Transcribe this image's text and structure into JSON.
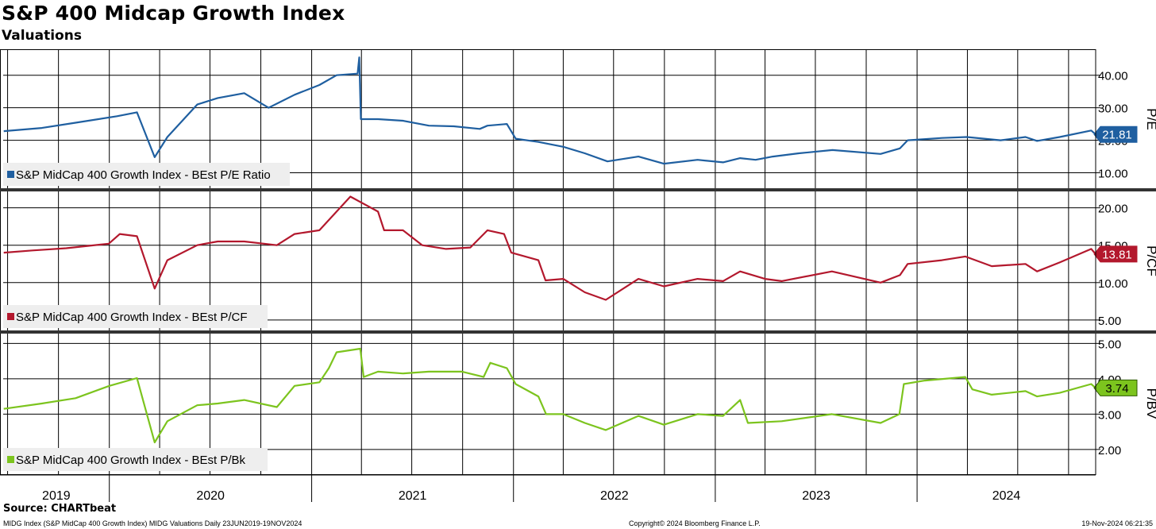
{
  "header": {
    "title": "S&P 400 Midcap Growth Index",
    "subtitle": "Valuations"
  },
  "footer": {
    "source": "Source: CHARTbeat",
    "description": "MIDG Index (S&P MidCap 400 Growth Index) MIDG Valuations  Daily 23JUN2019-19NOV2024",
    "copyright": "Copyright© 2024 Bloomberg Finance L.P.",
    "timestamp": "19-Nov-2024 06:21:35"
  },
  "chart_data": {
    "type": "line",
    "x_range": [
      "2019-06-23",
      "2024-11-19"
    ],
    "x_ticks": [
      "2019",
      "2020",
      "2021",
      "2022",
      "2023",
      "2024"
    ],
    "grid": true,
    "panels": [
      {
        "series_name": "S&P MidCap 400 Growth Index - BEst P/E Ratio",
        "axis_label": "P/E",
        "color": "#1f5fa0",
        "ylim": [
          5,
          48
        ],
        "y_ticks": [
          "10.00",
          "20.00",
          "30.00",
          "40.00"
        ],
        "last_value": "21.81",
        "points": [
          [
            "2019-06-24",
            22.8
          ],
          [
            "2019-09-01",
            23.8
          ],
          [
            "2019-11-01",
            25.4
          ],
          [
            "2020-01-15",
            27.4
          ],
          [
            "2020-02-20",
            28.6
          ],
          [
            "2020-03-23",
            14.8
          ],
          [
            "2020-04-15",
            21
          ],
          [
            "2020-06-08",
            31
          ],
          [
            "2020-07-15",
            33
          ],
          [
            "2020-09-01",
            34.5
          ],
          [
            "2020-10-15",
            30
          ],
          [
            "2020-12-01",
            34
          ],
          [
            "2021-01-15",
            37
          ],
          [
            "2021-02-15",
            40
          ],
          [
            "2021-03-25",
            40.5
          ],
          [
            "2021-03-28",
            45.5
          ],
          [
            "2021-03-31",
            26.5
          ],
          [
            "2021-05-01",
            26.5
          ],
          [
            "2021-06-15",
            26
          ],
          [
            "2021-08-01",
            24.5
          ],
          [
            "2021-09-15",
            24.3
          ],
          [
            "2021-11-01",
            23.5
          ],
          [
            "2021-11-15",
            24.5
          ],
          [
            "2021-12-20",
            25
          ],
          [
            "2022-01-05",
            20.5
          ],
          [
            "2022-02-15",
            19.5
          ],
          [
            "2022-04-01",
            18
          ],
          [
            "2022-05-10",
            16
          ],
          [
            "2022-06-20",
            13.5
          ],
          [
            "2022-08-15",
            15
          ],
          [
            "2022-09-30",
            12.8
          ],
          [
            "2022-11-30",
            14
          ],
          [
            "2023-01-15",
            13.2
          ],
          [
            "2023-02-15",
            14.5
          ],
          [
            "2023-03-15",
            14
          ],
          [
            "2023-04-15",
            15
          ],
          [
            "2023-06-01",
            16
          ],
          [
            "2023-08-01",
            17
          ],
          [
            "2023-10-27",
            15.8
          ],
          [
            "2023-12-01",
            17.5
          ],
          [
            "2023-12-15",
            20
          ],
          [
            "2024-02-15",
            20.7
          ],
          [
            "2024-03-31",
            21
          ],
          [
            "2024-05-31",
            20
          ],
          [
            "2024-07-15",
            21
          ],
          [
            "2024-08-05",
            19.8
          ],
          [
            "2024-09-15",
            21
          ],
          [
            "2024-11-11",
            23
          ],
          [
            "2024-11-19",
            21.81
          ]
        ]
      },
      {
        "series_name": "S&P MidCap 400 Growth Index - BEst P/CF",
        "axis_label": "P/CF",
        "color": "#b3182d",
        "ylim": [
          3.5,
          22.3
        ],
        "y_ticks": [
          "5.00",
          "10.00",
          "15.00",
          "20.00"
        ],
        "last_value": "13.81",
        "points": [
          [
            "2019-06-24",
            14
          ],
          [
            "2019-08-15",
            14.3
          ],
          [
            "2019-10-15",
            14.6
          ],
          [
            "2019-12-31",
            15.2
          ],
          [
            "2020-01-20",
            16.5
          ],
          [
            "2020-02-20",
            16.2
          ],
          [
            "2020-03-23",
            9.2
          ],
          [
            "2020-04-15",
            13
          ],
          [
            "2020-06-08",
            15
          ],
          [
            "2020-07-15",
            15.5
          ],
          [
            "2020-09-01",
            15.5
          ],
          [
            "2020-10-30",
            15
          ],
          [
            "2020-12-01",
            16.5
          ],
          [
            "2021-01-15",
            17
          ],
          [
            "2021-03-12",
            21.5
          ],
          [
            "2021-05-01",
            19.5
          ],
          [
            "2021-05-12",
            17
          ],
          [
            "2021-06-15",
            17
          ],
          [
            "2021-07-20",
            15
          ],
          [
            "2021-09-01",
            14.5
          ],
          [
            "2021-10-15",
            14.7
          ],
          [
            "2021-11-15",
            17
          ],
          [
            "2021-12-15",
            16.5
          ],
          [
            "2021-12-28",
            14
          ],
          [
            "2022-02-15",
            13
          ],
          [
            "2022-02-28",
            10.3
          ],
          [
            "2022-04-01",
            10.5
          ],
          [
            "2022-05-10",
            8.7
          ],
          [
            "2022-06-17",
            7.7
          ],
          [
            "2022-08-15",
            10.5
          ],
          [
            "2022-09-30",
            9.5
          ],
          [
            "2022-11-30",
            10.5
          ],
          [
            "2023-01-15",
            10.2
          ],
          [
            "2023-02-15",
            11.5
          ],
          [
            "2023-04-01",
            10.5
          ],
          [
            "2023-05-01",
            10.2
          ],
          [
            "2023-07-31",
            11.5
          ],
          [
            "2023-10-27",
            10
          ],
          [
            "2023-12-01",
            11
          ],
          [
            "2023-12-15",
            12.5
          ],
          [
            "2024-02-15",
            13
          ],
          [
            "2024-03-28",
            13.5
          ],
          [
            "2024-05-15",
            12.2
          ],
          [
            "2024-07-15",
            12.5
          ],
          [
            "2024-08-05",
            11.5
          ],
          [
            "2024-09-15",
            12.7
          ],
          [
            "2024-11-11",
            14.5
          ],
          [
            "2024-11-19",
            13.81
          ]
        ]
      },
      {
        "series_name": "S&P MidCap 400 Growth Index - BEst P/Bk",
        "axis_label": "P/BV",
        "color": "#7cc41e",
        "ylim": [
          1.3,
          5.3
        ],
        "y_ticks": [
          "2.00",
          "3.00",
          "4.00",
          "5.00"
        ],
        "last_value": "3.74",
        "points": [
          [
            "2019-06-24",
            3.15
          ],
          [
            "2019-09-01",
            3.3
          ],
          [
            "2019-11-01",
            3.45
          ],
          [
            "2020-01-01",
            3.8
          ],
          [
            "2020-02-20",
            4.02
          ],
          [
            "2020-03-23",
            2.2
          ],
          [
            "2020-04-15",
            2.8
          ],
          [
            "2020-06-08",
            3.25
          ],
          [
            "2020-07-15",
            3.3
          ],
          [
            "2020-09-01",
            3.4
          ],
          [
            "2020-10-30",
            3.2
          ],
          [
            "2020-12-01",
            3.8
          ],
          [
            "2021-01-15",
            3.9
          ],
          [
            "2021-02-01",
            4.3
          ],
          [
            "2021-02-15",
            4.75
          ],
          [
            "2021-03-30",
            4.85
          ],
          [
            "2021-04-05",
            4.05
          ],
          [
            "2021-05-01",
            4.2
          ],
          [
            "2021-06-15",
            4.15
          ],
          [
            "2021-08-01",
            4.2
          ],
          [
            "2021-09-30",
            4.2
          ],
          [
            "2021-11-08",
            4.05
          ],
          [
            "2021-11-20",
            4.45
          ],
          [
            "2021-12-20",
            4.3
          ],
          [
            "2022-01-05",
            3.85
          ],
          [
            "2022-02-15",
            3.5
          ],
          [
            "2022-03-01",
            3.0
          ],
          [
            "2022-04-01",
            3.0
          ],
          [
            "2022-05-10",
            2.75
          ],
          [
            "2022-06-17",
            2.55
          ],
          [
            "2022-08-15",
            2.95
          ],
          [
            "2022-09-30",
            2.7
          ],
          [
            "2022-11-30",
            3.0
          ],
          [
            "2023-01-15",
            2.95
          ],
          [
            "2023-02-15",
            3.4
          ],
          [
            "2023-03-01",
            2.75
          ],
          [
            "2023-05-01",
            2.8
          ],
          [
            "2023-07-31",
            3.0
          ],
          [
            "2023-10-27",
            2.75
          ],
          [
            "2023-11-30",
            3.0
          ],
          [
            "2023-12-08",
            3.85
          ],
          [
            "2024-01-15",
            3.95
          ],
          [
            "2024-03-28",
            4.05
          ],
          [
            "2024-04-10",
            3.7
          ],
          [
            "2024-05-15",
            3.55
          ],
          [
            "2024-07-15",
            3.65
          ],
          [
            "2024-08-05",
            3.5
          ],
          [
            "2024-09-15",
            3.6
          ],
          [
            "2024-11-11",
            3.85
          ],
          [
            "2024-11-19",
            3.74
          ]
        ]
      }
    ]
  }
}
